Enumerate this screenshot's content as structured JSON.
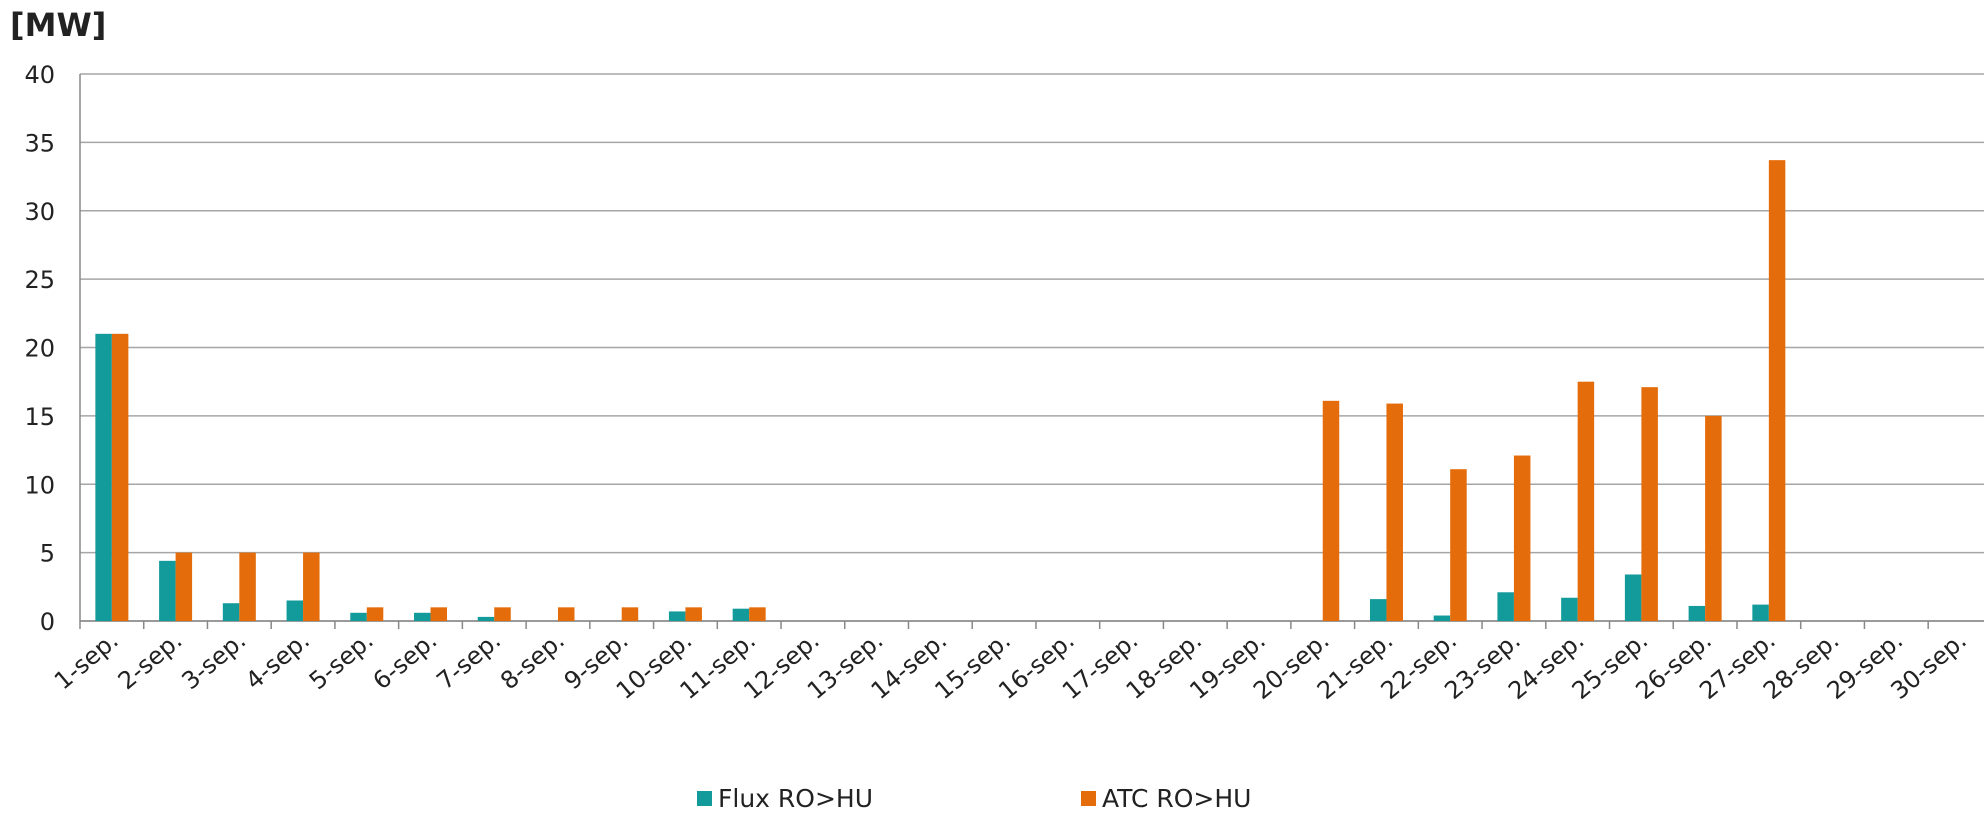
{
  "chart_data": {
    "type": "bar",
    "unit_label": "[MW]",
    "categories": [
      "1-sep.",
      "2-sep.",
      "3-sep.",
      "4-sep.",
      "5-sep.",
      "6-sep.",
      "7-sep.",
      "8-sep.",
      "9-sep.",
      "10-sep.",
      "11-sep.",
      "12-sep.",
      "13-sep.",
      "14-sep.",
      "15-sep.",
      "16-sep.",
      "17-sep.",
      "18-sep.",
      "19-sep.",
      "20-sep.",
      "21-sep.",
      "22-sep.",
      "23-sep.",
      "24-sep.",
      "25-sep.",
      "26-sep.",
      "27-sep.",
      "28-sep.",
      "29-sep.",
      "30-sep."
    ],
    "series": [
      {
        "name": "Flux RO>HU",
        "color": "#139a9b",
        "values": [
          21,
          4.4,
          1.3,
          1.5,
          0.6,
          0.6,
          0.3,
          0,
          0,
          0.7,
          0.9,
          0,
          0,
          0,
          0,
          0,
          0,
          0,
          0,
          0,
          1.6,
          0.4,
          2.1,
          1.7,
          3.4,
          1.1,
          1.2,
          0,
          0,
          0
        ]
      },
      {
        "name": "ATC RO>HU",
        "color": "#e46c0a",
        "values": [
          21,
          5,
          5,
          5,
          1,
          1,
          1,
          1,
          1,
          1,
          1,
          0,
          0,
          0,
          0,
          0,
          0,
          0,
          0,
          16.1,
          15.9,
          11.1,
          12.1,
          17.5,
          17.1,
          15,
          33.7,
          0,
          0,
          0
        ]
      }
    ],
    "yticks": [
      "0",
      "5",
      "10",
      "15",
      "20",
      "25",
      "30",
      "35",
      "40"
    ],
    "ylim": [
      0,
      40
    ],
    "grid": true,
    "legend_position": "bottom"
  }
}
